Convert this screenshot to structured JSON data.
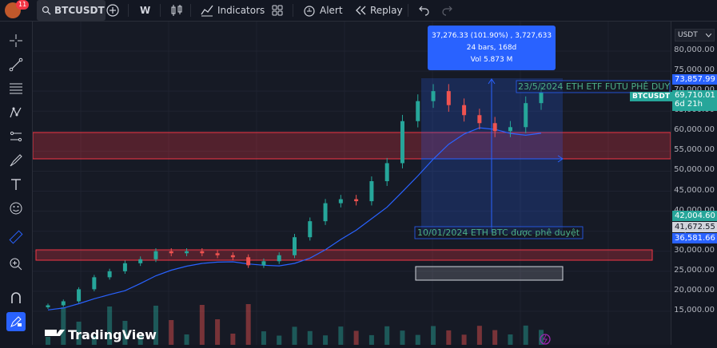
{
  "toolbar": {
    "avatar_badge": "11",
    "symbol": "BTCUSDT",
    "interval": "W",
    "indicators_label": "Indicators",
    "alert_label": "Alert",
    "replay_label": "Replay"
  },
  "price_axis": {
    "currency": "USDT",
    "ticks": [
      "80,000.00",
      "75,000.00",
      "70,000.00",
      "65,000.00",
      "60,000.00",
      "55,000.00",
      "50,000.00",
      "45,000.00",
      "40,000.00",
      "35,000.00",
      "30,000.00",
      "25,000.00",
      "20,000.00",
      "15,000.00"
    ],
    "tag_high": "73,857.99",
    "tag_symbol": "BTCUSDT",
    "tag_last": "69,710.01",
    "tag_countdown": "6d 21h",
    "tag_green": "42,004.60",
    "tag_gray": "41,672.55",
    "tag_blue": "36,581.66"
  },
  "measure": {
    "line1": "37,276.33 (101.90%) , 3,727,633",
    "line2": "24 bars, 168d",
    "line3": "Vol 5.873 M"
  },
  "annotations": {
    "top_note": "23/5/2024 ETH ETF FUTU PHÊ DUYỆ",
    "bottom_note": "10/01/2024 ETH BTC được phê duyệt"
  },
  "brand": "TradingView",
  "colors": {
    "up": "#26a69a",
    "down": "#ef5350",
    "ma": "#2962ff",
    "measure": "#2962ff"
  }
}
